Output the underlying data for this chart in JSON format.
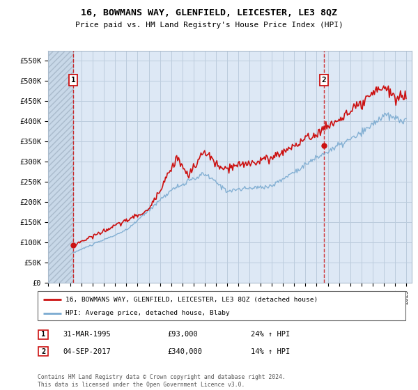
{
  "title": "16, BOWMANS WAY, GLENFIELD, LEICESTER, LE3 8QZ",
  "subtitle": "Price paid vs. HM Land Registry's House Price Index (HPI)",
  "ylim": [
    0,
    575000
  ],
  "yticks": [
    0,
    50000,
    100000,
    150000,
    200000,
    250000,
    300000,
    350000,
    400000,
    450000,
    500000,
    550000
  ],
  "ytick_labels": [
    "£0",
    "£50K",
    "£100K",
    "£150K",
    "£200K",
    "£250K",
    "£300K",
    "£350K",
    "£400K",
    "£450K",
    "£500K",
    "£550K"
  ],
  "xlim_start": 1993.0,
  "xlim_end": 2025.5,
  "hpi_color": "#7aaad0",
  "price_color": "#cc1111",
  "marker_color": "#cc1111",
  "grid_color": "#bbccdd",
  "bg_color": "#dde8f5",
  "hatch_bg": "#c8d8e8",
  "sale1_x": 1995.247,
  "sale1_y": 93000,
  "sale1_label": "1",
  "sale1_date": "31-MAR-1995",
  "sale1_price": "£93,000",
  "sale1_hpi": "24% ↑ HPI",
  "sale2_x": 2017.67,
  "sale2_y": 340000,
  "sale2_label": "2",
  "sale2_date": "04-SEP-2017",
  "sale2_price": "£340,000",
  "sale2_hpi": "14% ↑ HPI",
  "legend_line1": "16, BOWMANS WAY, GLENFIELD, LEICESTER, LE3 8QZ (detached house)",
  "legend_line2": "HPI: Average price, detached house, Blaby",
  "footer1": "Contains HM Land Registry data © Crown copyright and database right 2024.",
  "footer2": "This data is licensed under the Open Government Licence v3.0.",
  "xtick_years": [
    1993,
    1994,
    1995,
    1996,
    1997,
    1998,
    1999,
    2000,
    2001,
    2002,
    2003,
    2004,
    2005,
    2006,
    2007,
    2008,
    2009,
    2010,
    2011,
    2012,
    2013,
    2014,
    2015,
    2016,
    2017,
    2018,
    2019,
    2020,
    2021,
    2022,
    2023,
    2024,
    2025
  ]
}
